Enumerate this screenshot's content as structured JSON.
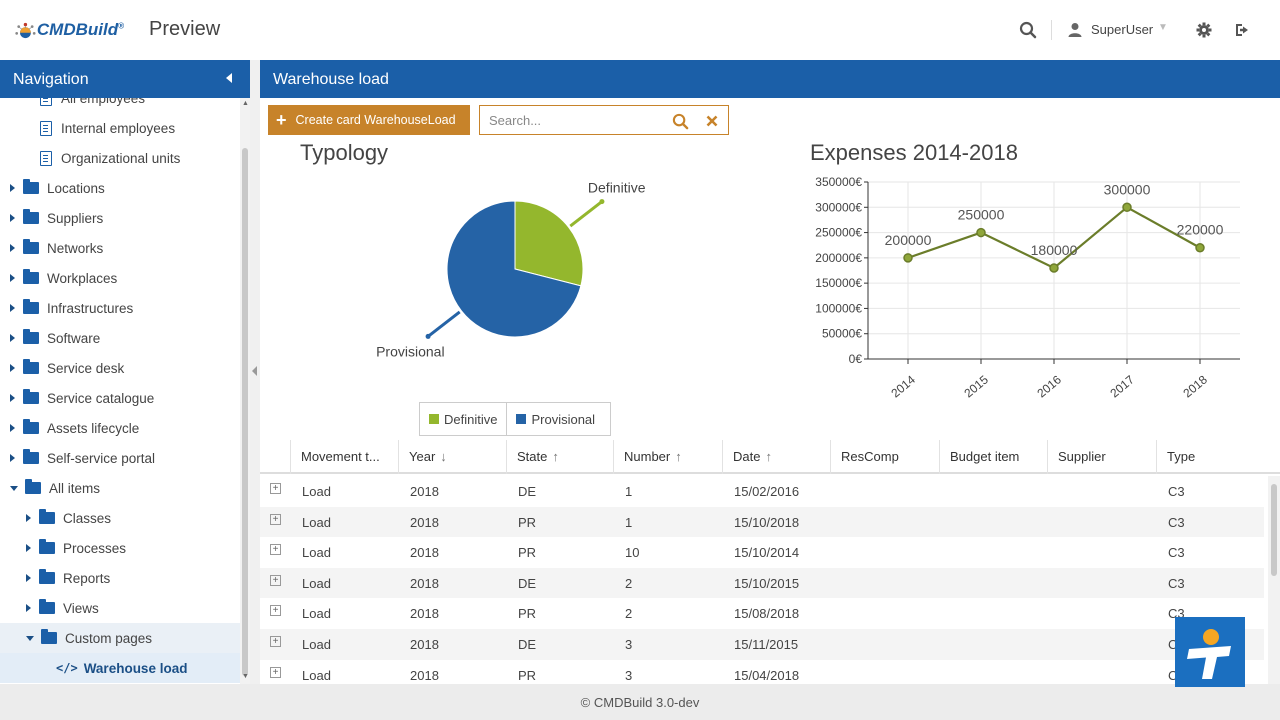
{
  "header": {
    "logo_text": "CMDBuild",
    "logo_mark": "®",
    "title": "Preview",
    "user": "SuperUser",
    "icons": [
      "search-icon",
      "user-icon",
      "gear-icon",
      "logout-icon"
    ]
  },
  "navigation": {
    "title": "Navigation",
    "items": [
      {
        "label": "All employees",
        "type": "doc",
        "indent": 1
      },
      {
        "label": "Internal employees",
        "type": "doc",
        "indent": 1
      },
      {
        "label": "Organizational units",
        "type": "doc",
        "indent": 1
      },
      {
        "label": "Locations",
        "type": "folder",
        "indent": 0
      },
      {
        "label": "Suppliers",
        "type": "folder",
        "indent": 0
      },
      {
        "label": "Networks",
        "type": "folder",
        "indent": 0
      },
      {
        "label": "Workplaces",
        "type": "folder",
        "indent": 0
      },
      {
        "label": "Infrastructures",
        "type": "folder",
        "indent": 0
      },
      {
        "label": "Software",
        "type": "folder",
        "indent": 0
      },
      {
        "label": "Service desk",
        "type": "folder",
        "indent": 0
      },
      {
        "label": "Service catalogue",
        "type": "folder",
        "indent": 0
      },
      {
        "label": "Assets lifecycle",
        "type": "folder",
        "indent": 0
      },
      {
        "label": "Self-service portal",
        "type": "folder",
        "indent": 0
      },
      {
        "label": "All items",
        "type": "folder-open",
        "indent": 0
      },
      {
        "label": "Classes",
        "type": "folder",
        "indent": 1
      },
      {
        "label": "Processes",
        "type": "folder",
        "indent": 1
      },
      {
        "label": "Reports",
        "type": "folder",
        "indent": 1
      },
      {
        "label": "Views",
        "type": "folder",
        "indent": 1
      },
      {
        "label": "Custom pages",
        "type": "folder-open",
        "indent": 1
      },
      {
        "label": "Warehouse load",
        "type": "code",
        "indent": 2
      }
    ]
  },
  "main": {
    "title": "Warehouse load",
    "create_button": "Create card WarehouseLoad",
    "search_placeholder": "Search..."
  },
  "pie_chart": {
    "title": "Typology",
    "label_definitive": "Definitive",
    "label_provisional": "Provisional",
    "legend": [
      "Definitive",
      "Provisional"
    ]
  },
  "chart_data": [
    {
      "type": "pie",
      "title": "Typology",
      "labels": [
        "Definitive",
        "Provisional"
      ],
      "values": [
        29,
        71
      ],
      "colors": [
        "#94b72d",
        "#2563a6"
      ],
      "legend": "bottom"
    },
    {
      "type": "line",
      "title": "Expenses 2014-2018",
      "x": [
        "2014",
        "2015",
        "2016",
        "2017",
        "2018"
      ],
      "values": [
        200000,
        250000,
        180000,
        300000,
        220000
      ],
      "data_labels": [
        "200000",
        "250000",
        "180000",
        "300000",
        "220000"
      ],
      "y_ticks": [
        "0€",
        "50000€",
        "100000€",
        "150000€",
        "200000€",
        "250000€",
        "300000€",
        "350000€"
      ],
      "ylim": [
        0,
        350000
      ],
      "grid": true,
      "color": "#6b7d2a"
    }
  ],
  "grid": {
    "columns": [
      {
        "label": "Movement t...",
        "sort": ""
      },
      {
        "label": "Year",
        "sort": "↓"
      },
      {
        "label": "State",
        "sort": "↑"
      },
      {
        "label": "Number",
        "sort": "↑"
      },
      {
        "label": "Date",
        "sort": "↑"
      },
      {
        "label": "ResComp",
        "sort": ""
      },
      {
        "label": "Budget item",
        "sort": ""
      },
      {
        "label": "Supplier",
        "sort": ""
      },
      {
        "label": "Type",
        "sort": ""
      }
    ],
    "rows": [
      [
        "Load",
        "2018",
        "DE",
        "1",
        "15/02/2016",
        "",
        "",
        "",
        "C3"
      ],
      [
        "Load",
        "2018",
        "PR",
        "1",
        "15/10/2018",
        "",
        "",
        "",
        "C3"
      ],
      [
        "Load",
        "2018",
        "PR",
        "10",
        "15/10/2014",
        "",
        "",
        "",
        "C3"
      ],
      [
        "Load",
        "2018",
        "DE",
        "2",
        "15/10/2015",
        "",
        "",
        "",
        "C3"
      ],
      [
        "Load",
        "2018",
        "PR",
        "2",
        "15/08/2018",
        "",
        "",
        "",
        "C3"
      ],
      [
        "Load",
        "2018",
        "DE",
        "3",
        "15/11/2015",
        "",
        "",
        "",
        "C3"
      ],
      [
        "Load",
        "2018",
        "PR",
        "3",
        "15/04/2018",
        "",
        "",
        "",
        "C3"
      ]
    ]
  },
  "footer": "© CMDBuild 3.0-dev"
}
